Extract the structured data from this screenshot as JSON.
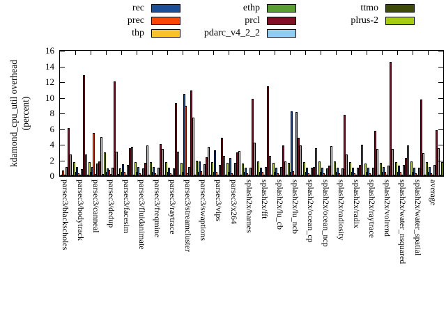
{
  "figure": {
    "background": "#ffffff",
    "axis_color": "#000000"
  },
  "chart_data": {
    "type": "bar",
    "title": "",
    "ylabel_line1": "kdamond_cpu_util overhead",
    "ylabel_line2": "(percent)",
    "xlabel": "",
    "ylim": [
      0,
      16
    ],
    "ytick_step": 2,
    "ytick_labels": [
      "0",
      "2",
      "4",
      "6",
      "8",
      "10",
      "12",
      "14",
      "16"
    ],
    "grid": false,
    "legend_position": "top",
    "categories": [
      "parsec3/blackscholes",
      "parsec3/bodytrack",
      "parsec3/canneal",
      "parsec3/dedup",
      "parsec3/facesim",
      "parsec3/fluidanimate",
      "parsec3/freqmine",
      "parsec3/raytrace",
      "parsec3/streamcluster",
      "parsec3/swaptions",
      "parsec3/vips",
      "parsec3/x264",
      "splash2x/barnes",
      "splash2x/fft",
      "splash2x/lu_cb",
      "splash2x/lu_ncb",
      "splash2x/ocean_cp",
      "splash2x/ocean_ncp",
      "splash2x/radiosity",
      "splash2x/radix",
      "splash2x/raytrace",
      "splash2x/volrend",
      "splash2x/water_nsquared",
      "splash2x/water_spatial",
      "average"
    ],
    "series": [
      {
        "name": "rec",
        "color": "#1a4e96",
        "values": [
          0.15,
          1.2,
          1.2,
          1.0,
          1.5,
          1.2,
          1.2,
          1.1,
          10.5,
          1.9,
          3.3,
          2.3,
          1.1,
          1.1,
          1.1,
          8.3,
          1.1,
          1.1,
          1.1,
          1.1,
          1.1,
          1.2,
          1.3,
          1.1,
          1.2
        ]
      },
      {
        "name": "prec",
        "color": "#fa4800",
        "values": [
          0.7,
          0.4,
          5.5,
          0.8,
          0.5,
          0.4,
          0.4,
          0.4,
          9.0,
          0.6,
          0.5,
          0.4,
          0.4,
          0.5,
          0.4,
          0.6,
          0.4,
          0.4,
          0.4,
          0.4,
          0.4,
          0.5,
          0.5,
          0.4,
          0.4
        ]
      },
      {
        "name": "thp",
        "color": "#f8c32a",
        "values": [
          0.15,
          0.2,
          0.3,
          0.3,
          0.1,
          0.1,
          0.1,
          0.1,
          0.4,
          0.1,
          0.2,
          0.2,
          0.1,
          0.2,
          0.1,
          0.1,
          0.1,
          0.1,
          0.1,
          0.1,
          0.1,
          0.1,
          0.1,
          0.1,
          0.1
        ]
      },
      {
        "name": "ethp",
        "color": "#5a9e32",
        "values": [
          1.2,
          0.9,
          1.6,
          1.1,
          1.4,
          1.0,
          1.1,
          1.0,
          1.2,
          1.5,
          1.4,
          1.7,
          1.1,
          1.2,
          1.2,
          8.2,
          1.1,
          1.0,
          1.0,
          1.1,
          1.1,
          1.3,
          1.4,
          1.1,
          1.4
        ]
      },
      {
        "name": "prcl",
        "color": "#800f26",
        "values": [
          6.1,
          12.9,
          1.9,
          12.1,
          3.6,
          1.7,
          4.1,
          9.3,
          10.9,
          2.4,
          4.9,
          3.0,
          9.9,
          11.5,
          3.9,
          4.9,
          1.2,
          1.3,
          7.8,
          1.4,
          5.8,
          14.6,
          2.3,
          9.8,
          5.9
        ]
      },
      {
        "name": "pdarc_v4_2_2",
        "color": "#8fcdf2",
        "values": [
          2.8,
          2.8,
          5.0,
          3.1,
          3.7,
          3.9,
          3.5,
          3.1,
          7.5,
          3.7,
          2.6,
          3.2,
          4.3,
          2.6,
          1.9,
          3.9,
          3.6,
          3.8,
          2.8,
          4.0,
          3.5,
          3.5,
          3.9,
          2.9,
          3.6
        ]
      },
      {
        "name": "ttmo",
        "color": "#3d4a08",
        "values": [
          0.15,
          0.2,
          0.3,
          0.3,
          0.1,
          0.1,
          0.1,
          0.1,
          0.2,
          0.1,
          0.2,
          0.2,
          0.1,
          0.2,
          0.1,
          0.1,
          0.1,
          0.1,
          0.1,
          0.1,
          0.1,
          0.1,
          0.1,
          0.1,
          0.1
        ]
      },
      {
        "name": "plrus-2",
        "color": "#a8cc0e",
        "values": [
          1.8,
          1.8,
          3.0,
          1.0,
          1.8,
          1.8,
          1.8,
          1.7,
          2.0,
          1.8,
          1.7,
          1.6,
          1.9,
          1.7,
          1.7,
          1.8,
          1.9,
          1.9,
          1.75,
          1.6,
          1.7,
          1.8,
          1.9,
          1.8,
          1.8
        ]
      }
    ]
  }
}
